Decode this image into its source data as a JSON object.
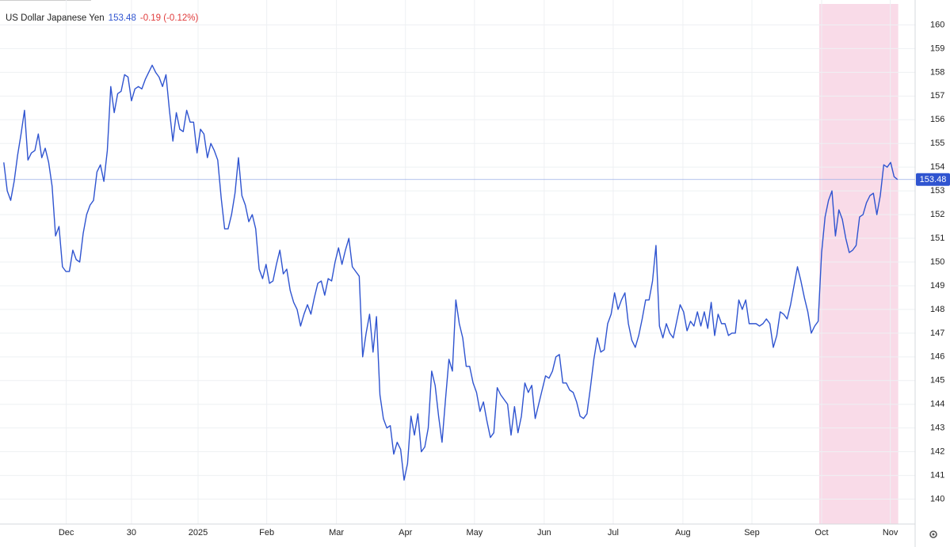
{
  "chart_data": {
    "type": "line",
    "title": "US Dollar Japanese Yen",
    "last_price": 153.48,
    "change": "-0.19 (-0.12%)",
    "series": [
      {
        "color": "#2f54d0",
        "values": [
          154.2,
          153.0,
          152.6,
          153.4,
          154.5,
          155.4,
          156.4,
          154.3,
          154.6,
          154.7,
          155.4,
          154.4,
          154.8,
          154.2,
          153.2,
          151.1,
          151.5,
          149.8,
          149.6,
          149.6,
          150.5,
          150.1,
          150.0,
          151.2,
          152.0,
          152.4,
          152.6,
          153.8,
          154.1,
          153.4,
          154.7,
          157.4,
          156.3,
          157.1,
          157.2,
          157.9,
          157.8,
          156.8,
          157.3,
          157.4,
          157.3,
          157.7,
          158.0,
          158.3,
          158.0,
          157.8,
          157.4,
          157.9,
          156.4,
          155.1,
          156.3,
          155.6,
          155.5,
          156.4,
          155.9,
          155.9,
          154.6,
          155.6,
          155.4,
          154.4,
          155.0,
          154.7,
          154.3,
          152.7,
          151.4,
          151.4,
          152.0,
          152.9,
          154.4,
          152.8,
          152.4,
          151.7,
          152.0,
          151.4,
          149.7,
          149.3,
          149.9,
          149.1,
          149.2,
          149.9,
          150.5,
          149.5,
          149.7,
          148.8,
          148.3,
          148.0,
          147.3,
          147.8,
          148.2,
          147.8,
          148.5,
          149.1,
          149.2,
          148.6,
          149.3,
          149.2,
          150.0,
          150.6,
          149.9,
          150.5,
          151.0,
          149.8,
          149.6,
          149.4,
          146.0,
          147.0,
          147.8,
          146.2,
          147.7,
          144.4,
          143.4,
          143.0,
          143.1,
          141.9,
          142.4,
          142.1,
          140.8,
          141.5,
          143.5,
          142.7,
          143.6,
          142.0,
          142.2,
          143.0,
          145.4,
          144.8,
          143.5,
          142.4,
          144.2,
          145.9,
          145.4,
          148.4,
          147.4,
          146.8,
          145.6,
          145.6,
          144.9,
          144.5,
          143.7,
          144.1,
          143.3,
          142.6,
          142.8,
          144.7,
          144.4,
          144.2,
          144.0,
          142.7,
          143.9,
          142.8,
          143.5,
          144.9,
          144.5,
          144.8,
          143.4,
          144.0,
          144.6,
          145.2,
          145.1,
          145.4,
          146.0,
          146.1,
          144.9,
          144.9,
          144.6,
          144.5,
          144.1,
          143.5,
          143.4,
          143.6,
          144.7,
          145.9,
          146.8,
          146.2,
          146.3,
          147.4,
          147.8,
          148.7,
          148.0,
          148.4,
          148.7,
          147.4,
          146.7,
          146.4,
          146.9,
          147.6,
          148.4,
          148.4,
          149.2,
          150.7,
          147.3,
          146.8,
          147.4,
          147.0,
          146.8,
          147.5,
          148.2,
          147.9,
          147.1,
          147.5,
          147.3,
          147.9,
          147.3,
          147.9,
          147.2,
          148.3,
          146.9,
          147.8,
          147.4,
          147.4,
          146.9,
          147.0,
          147.0,
          148.4,
          148.0,
          148.4,
          147.4,
          147.4,
          147.4,
          147.3,
          147.4,
          147.6,
          147.4,
          146.4,
          146.9,
          147.9,
          147.8,
          147.6,
          148.2,
          149.0,
          149.8,
          149.2,
          148.5,
          147.9,
          147.0,
          147.3,
          147.5,
          150.4,
          151.9,
          152.6,
          153.0,
          151.1,
          152.2,
          151.8,
          151.0,
          150.4,
          150.5,
          150.7,
          151.9,
          152.0,
          152.5,
          152.8,
          152.9,
          152.0,
          152.8,
          154.1,
          154.0,
          154.2,
          153.6,
          153.48
        ]
      }
    ],
    "xlim": [
      -1.1,
      264.1
    ],
    "xticks": [
      {
        "value": 18.1,
        "label": "Dec"
      },
      {
        "value": 37.0,
        "label": "30"
      },
      {
        "value": 56.3,
        "label": "2025"
      },
      {
        "value": 76.2,
        "label": "Feb"
      },
      {
        "value": 96.4,
        "label": "Mar"
      },
      {
        "value": 116.4,
        "label": "Apr"
      },
      {
        "value": 136.4,
        "label": "May"
      },
      {
        "value": 156.6,
        "label": "Jun"
      },
      {
        "value": 176.6,
        "label": "Jul"
      },
      {
        "value": 196.8,
        "label": "Aug"
      },
      {
        "value": 216.8,
        "label": "Sep"
      },
      {
        "value": 237.0,
        "label": "Oct"
      },
      {
        "value": 256.9,
        "label": "Nov"
      }
    ],
    "ylim": [
      138.95,
      161.05
    ],
    "yticks": [
      140,
      141,
      142,
      143,
      144,
      145,
      146,
      147,
      148,
      149,
      150,
      151,
      152,
      153,
      154,
      155,
      156,
      157,
      158,
      159,
      160
    ],
    "highlight": {
      "range": [
        236.3,
        259.2
      ],
      "color": "#f9dbe8"
    },
    "grid": true
  }
}
